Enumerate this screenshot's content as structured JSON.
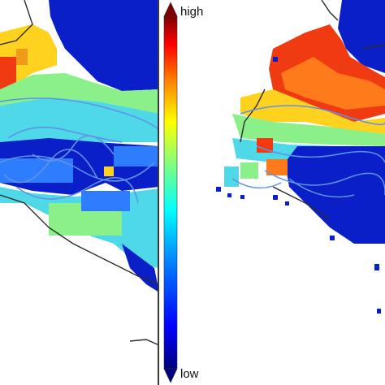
{
  "colorbar": {
    "high_label": "high",
    "low_label": "low",
    "gradient_stops": [
      "#00007f",
      "#0000ff",
      "#007fff",
      "#00ffff",
      "#7fff7f",
      "#ffff00",
      "#ff7f00",
      "#ff0000",
      "#7f0000"
    ]
  },
  "map_colors": {
    "low": "#0a1fc8",
    "mid_low": "#2f7dff",
    "mid": "#4fd8e8",
    "mid_high": "#8cf08a",
    "high": "#ffd21f",
    "very_high": "#f03a12",
    "track": "#5f93e6",
    "coast": "#2b2b2b"
  }
}
